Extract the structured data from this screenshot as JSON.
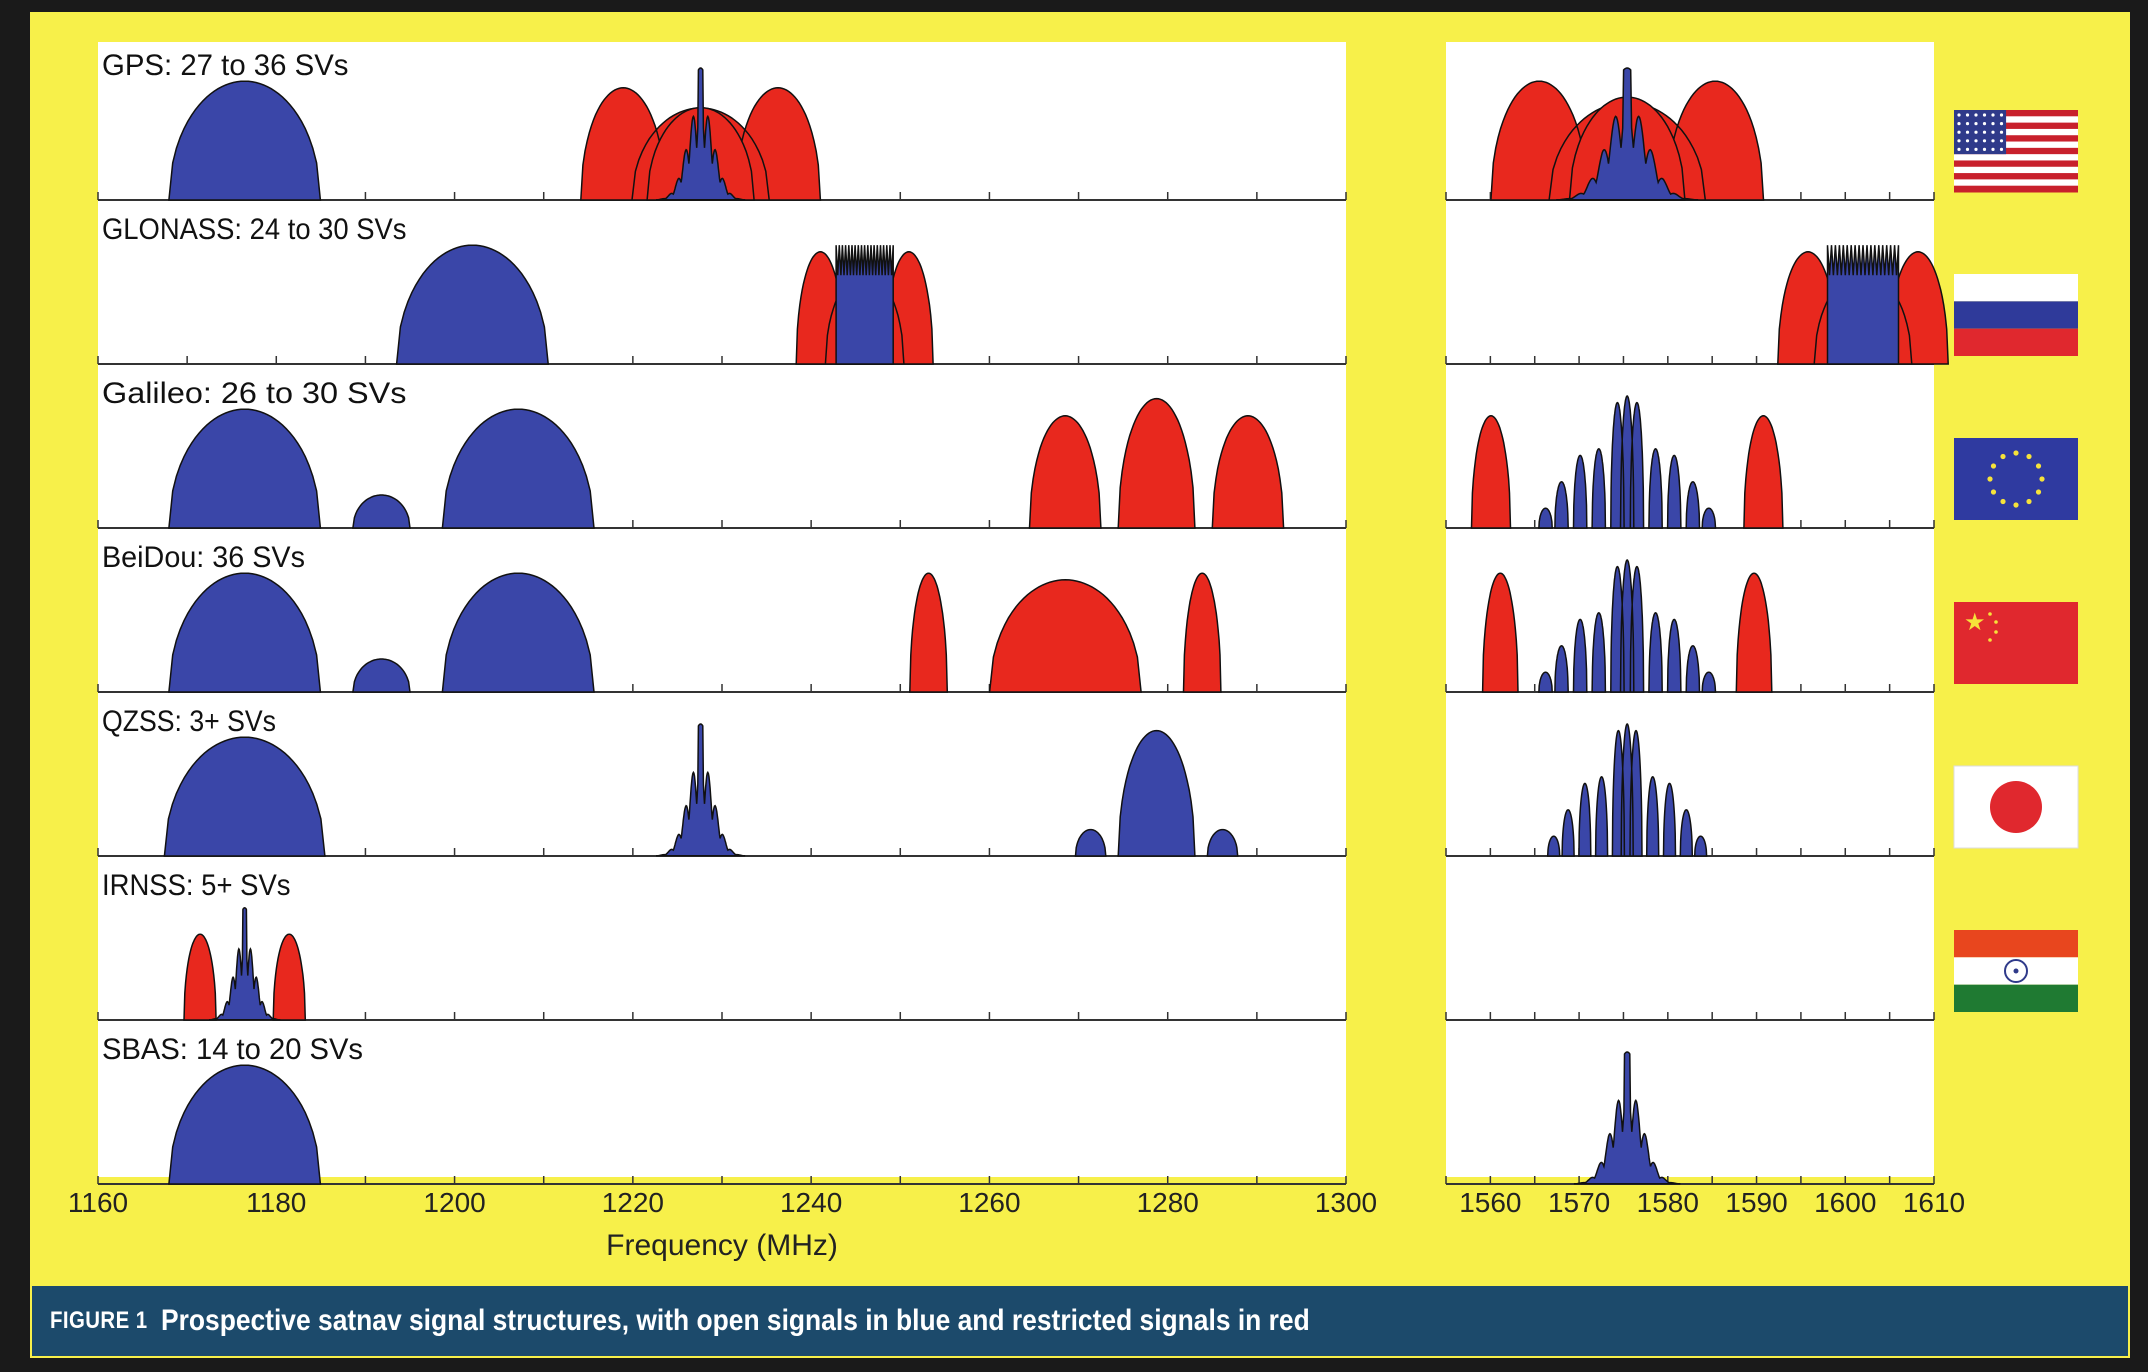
{
  "figure": {
    "number_label": "FIGURE 1",
    "caption": "Prospective satnav signal structures, with open signals in blue and restricted signals in red"
  },
  "colors": {
    "background": "#f7f04a",
    "open": "#3a46a8",
    "restricted": "#e8281e",
    "caption_bar": "#1c4a6b"
  },
  "chart_data": {
    "type": "area",
    "xlabel": "Frequency (MHz)",
    "left_axis": {
      "xlim": [
        1160,
        1300
      ],
      "ticks": [
        1160,
        1180,
        1200,
        1220,
        1240,
        1260,
        1280,
        1300
      ]
    },
    "right_axis": {
      "xlim": [
        1555,
        1610
      ],
      "ticks": [
        1560,
        1570,
        1580,
        1590,
        1600,
        1610
      ]
    },
    "legend": {
      "open": "blue",
      "restricted": "red"
    },
    "systems": [
      {
        "name": "GPS",
        "label": "GPS: 27 to 36 SVs",
        "flag": "united-states",
        "signals": [
          {
            "type": "open",
            "shape": "hump",
            "center": 1176.45,
            "half_width": 8.5,
            "height": 0.9
          },
          {
            "type": "restricted",
            "shape": "triple",
            "center": 1227.6,
            "half_width": 14,
            "height": 0.85
          },
          {
            "type": "restricted",
            "shape": "hump",
            "center": 1227.6,
            "half_width": 6,
            "height": 0.7
          },
          {
            "type": "open",
            "shape": "spike",
            "center": 1227.6,
            "half_width": 5,
            "height": 1.0
          },
          {
            "type": "restricted",
            "shape": "triple",
            "center": 1575.42,
            "half_width": 16,
            "height": 0.9
          },
          {
            "type": "restricted",
            "shape": "hump",
            "center": 1575.42,
            "half_width": 6.5,
            "height": 0.78
          },
          {
            "type": "open",
            "shape": "spike",
            "center": 1575.42,
            "half_width": 8,
            "height": 1.0
          }
        ]
      },
      {
        "name": "GLONASS",
        "label": "GLONASS: 24 to 30 SVs",
        "flag": "russia",
        "signals": [
          {
            "type": "open",
            "shape": "hump",
            "center": 1202,
            "half_width": 8.5,
            "height": 0.9
          },
          {
            "type": "restricted",
            "shape": "triple",
            "center": 1246,
            "half_width": 8,
            "height": 0.85
          },
          {
            "type": "open",
            "shape": "flat",
            "center": 1246,
            "half_width": 3.2,
            "height": 1.0
          },
          {
            "type": "restricted",
            "shape": "triple",
            "center": 1602,
            "half_width": 10,
            "height": 0.85
          },
          {
            "type": "open",
            "shape": "flat",
            "center": 1602,
            "half_width": 4,
            "height": 1.0
          }
        ]
      },
      {
        "name": "Galileo",
        "label": "Galileo: 26 to 30 SVs",
        "flag": "european-union",
        "signals": [
          {
            "type": "open",
            "shape": "hump",
            "center": 1176.45,
            "half_width": 8.5,
            "height": 0.9
          },
          {
            "type": "open",
            "shape": "hump",
            "center": 1191.8,
            "half_width": 3.2,
            "height": 0.25
          },
          {
            "type": "open",
            "shape": "hump",
            "center": 1207.14,
            "half_width": 8.5,
            "height": 0.9
          },
          {
            "type": "restricted",
            "shape": "hump",
            "center": 1268.5,
            "half_width": 4,
            "height": 0.85
          },
          {
            "type": "restricted",
            "shape": "hump",
            "center": 1278.75,
            "half_width": 4.3,
            "height": 0.98
          },
          {
            "type": "restricted",
            "shape": "hump",
            "center": 1289,
            "half_width": 4,
            "height": 0.85
          },
          {
            "type": "restricted",
            "shape": "twin",
            "center": 1575.42,
            "spacing": 15.35,
            "half_width": 2.2,
            "height": 0.85
          },
          {
            "type": "open",
            "shape": "multi",
            "center": 1575.42,
            "half_width": 10,
            "height": 1.0
          }
        ]
      },
      {
        "name": "BeiDou",
        "label": "BeiDou: 36 SVs",
        "flag": "china",
        "signals": [
          {
            "type": "open",
            "shape": "hump",
            "center": 1176.45,
            "half_width": 8.5,
            "height": 0.9
          },
          {
            "type": "open",
            "shape": "hump",
            "center": 1191.8,
            "half_width": 3.2,
            "height": 0.25
          },
          {
            "type": "open",
            "shape": "hump",
            "center": 1207.14,
            "half_width": 8.5,
            "height": 0.9
          },
          {
            "type": "restricted",
            "shape": "twin",
            "center": 1268.52,
            "spacing": 15.35,
            "half_width": 2.1,
            "height": 0.9
          },
          {
            "type": "restricted",
            "shape": "hump",
            "center": 1268.52,
            "half_width": 8.5,
            "height": 0.85
          },
          {
            "type": "restricted",
            "shape": "twin",
            "center": 1575.42,
            "spacing": 14.3,
            "half_width": 2.0,
            "height": 0.9
          },
          {
            "type": "open",
            "shape": "multi",
            "center": 1575.42,
            "half_width": 10,
            "height": 1.0
          }
        ]
      },
      {
        "name": "QZSS",
        "label": "QZSS: 3+ SVs",
        "flag": "japan",
        "signals": [
          {
            "type": "open",
            "shape": "hump",
            "center": 1176.45,
            "half_width": 9,
            "height": 0.9
          },
          {
            "type": "open",
            "shape": "spike",
            "center": 1227.6,
            "half_width": 5,
            "height": 1.0
          },
          {
            "type": "open",
            "shape": "hump",
            "center": 1278.75,
            "half_width": 4.3,
            "height": 0.95
          },
          {
            "type": "open",
            "shape": "twin",
            "center": 1278.75,
            "spacing": 7.4,
            "half_width": 1.7,
            "height": 0.2
          },
          {
            "type": "open",
            "shape": "multi",
            "center": 1575.42,
            "half_width": 9,
            "height": 1.0
          }
        ]
      },
      {
        "name": "IRNSS",
        "label": "IRNSS: 5+ SVs",
        "flag": "india",
        "signals": [
          {
            "type": "restricted",
            "shape": "twin",
            "center": 1176.45,
            "spacing": 5,
            "half_width": 1.8,
            "height": 0.65
          },
          {
            "type": "open",
            "shape": "spike",
            "center": 1176.45,
            "half_width": 4,
            "height": 0.85
          }
        ]
      },
      {
        "name": "SBAS",
        "label": "SBAS: 14 to 20 SVs",
        "flag": "none",
        "signals": [
          {
            "type": "open",
            "shape": "hump",
            "center": 1176.45,
            "half_width": 8.5,
            "height": 0.9
          },
          {
            "type": "open",
            "shape": "spike",
            "center": 1575.42,
            "half_width": 6,
            "height": 1.0
          }
        ]
      }
    ]
  }
}
